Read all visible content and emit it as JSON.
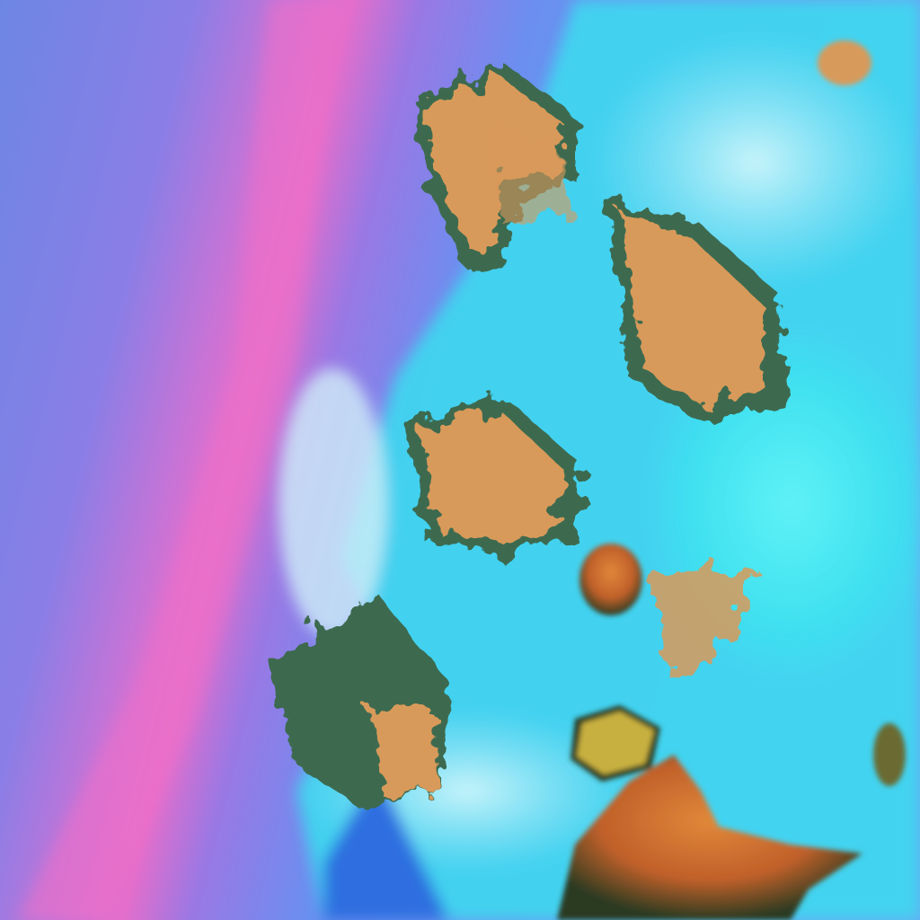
{
  "image": {
    "kind": "false-color satellite imagery",
    "colors": {
      "clear_sky_blue": "#6a7ee6",
      "band_magenta": "#e070c8",
      "cloud_cyan": "#40e8f0",
      "pale_cloud": "#b8f0f8",
      "deep_blue": "#2f6ee0",
      "convective_orange": "#d89a5a",
      "dark_core": "#c06020",
      "edge_green": "#3c6a50"
    }
  }
}
